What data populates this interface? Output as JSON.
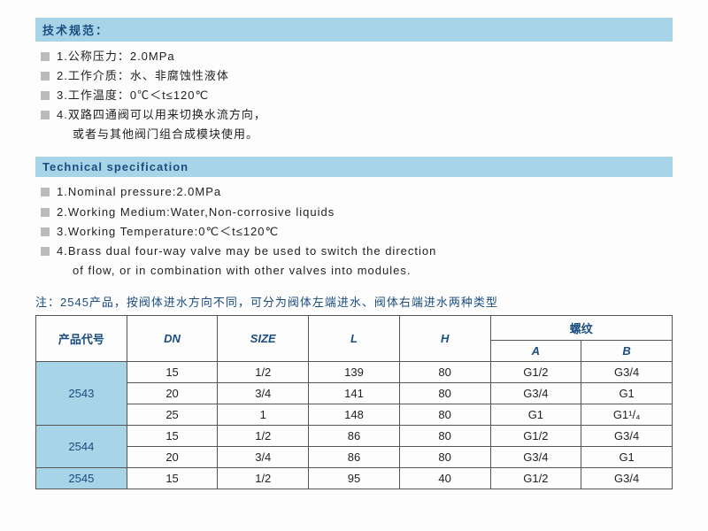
{
  "header_cn": "技术规范：",
  "specs_cn": [
    "1.公称压力：2.0MPa",
    "2.工作介质：水、非腐蚀性液体",
    "3.工作温度：0℃＜t≤120℃",
    "4.双路四通阀可以用来切换水流方向，"
  ],
  "specs_cn_cont": "或者与其他阀门组合成模块使用。",
  "header_en": "Technical specification",
  "specs_en": [
    "1.Nominal pressure:2.0MPa",
    "2.Working Medium:Water,Non-corrosive liquids",
    "3.Working Temperature:0℃＜t≤120℃",
    "4.Brass dual four-way valve may be used to switch the direction"
  ],
  "specs_en_cont": "of flow, or in combination with other valves into modules.",
  "note": "注：2545产品，按阀体进水方向不同，可分为阀体左端进水、阀体右端进水两种类型",
  "table": {
    "headers": {
      "code": "产品代号",
      "dn": "DN",
      "size": "SIZE",
      "l": "L",
      "h": "H",
      "thread": "螺纹",
      "a": "A",
      "b": "B"
    },
    "groups": [
      {
        "code": "2543",
        "rows": [
          {
            "dn": "15",
            "size": "1/2",
            "l": "139",
            "h": "80",
            "a": "G1/2",
            "b": "G3/4"
          },
          {
            "dn": "20",
            "size": "3/4",
            "l": "141",
            "h": "80",
            "a": "G3/4",
            "b": "G1"
          },
          {
            "dn": "25",
            "size": "1",
            "l": "148",
            "h": "80",
            "a": "G1",
            "b": "G1¹/₄"
          }
        ]
      },
      {
        "code": "2544",
        "rows": [
          {
            "dn": "15",
            "size": "1/2",
            "l": "86",
            "h": "80",
            "a": "G1/2",
            "b": "G3/4"
          },
          {
            "dn": "20",
            "size": "3/4",
            "l": "86",
            "h": "80",
            "a": "G3/4",
            "b": "G1"
          }
        ]
      },
      {
        "code": "2545",
        "rows": [
          {
            "dn": "15",
            "size": "1/2",
            "l": "95",
            "h": "40",
            "a": "G1/2",
            "b": "G3/4"
          }
        ]
      }
    ]
  }
}
